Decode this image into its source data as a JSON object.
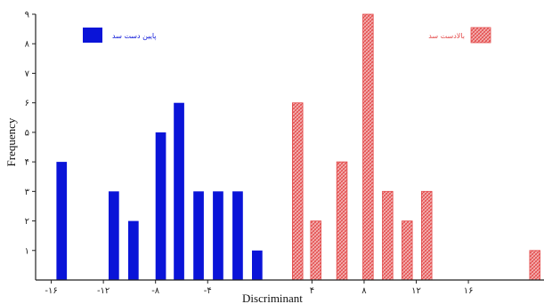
{
  "chart_data": {
    "type": "bar",
    "title": "",
    "xlabel": "Discriminant",
    "ylabel": "Frequency",
    "xlim": [
      -17.2,
      21.8
    ],
    "ylim": [
      0,
      9
    ],
    "x_ticks": [
      -16,
      -12,
      -8,
      -4,
      4,
      8,
      12,
      16
    ],
    "x_tick_labels": [
      "-۱۶",
      "-۱۲",
      "-۸",
      "-۴",
      "۴",
      "۸",
      "۱۲",
      "۱۶"
    ],
    "y_ticks": [
      1,
      2,
      3,
      4,
      5,
      6,
      7,
      8,
      9
    ],
    "y_tick_labels": [
      "۱",
      "۲",
      "۳",
      "۴",
      "۵",
      "۶",
      "۷",
      "۸",
      "۹"
    ],
    "grid": false,
    "bar_width": 0.8,
    "legend_position": "top",
    "series": [
      {
        "name": "پایین دست سد",
        "color": "#0a14d8",
        "pattern": "solid",
        "legend_position": "top-left",
        "x": [
          -15.2,
          -11.2,
          -9.7,
          -7.6,
          -6.2,
          -4.7,
          -3.2,
          -1.7,
          -0.2
        ],
        "values": [
          4,
          3,
          2,
          5,
          6,
          3,
          3,
          3,
          1
        ]
      },
      {
        "name": "بالادست سد",
        "color": "#e34a4a",
        "pattern": "hatched",
        "legend_position": "top-right",
        "x": [
          2.9,
          4.3,
          6.3,
          8.3,
          9.8,
          11.3,
          12.8,
          21.1
        ],
        "values": [
          6,
          2,
          4,
          9,
          3,
          2,
          3,
          1
        ]
      }
    ]
  }
}
